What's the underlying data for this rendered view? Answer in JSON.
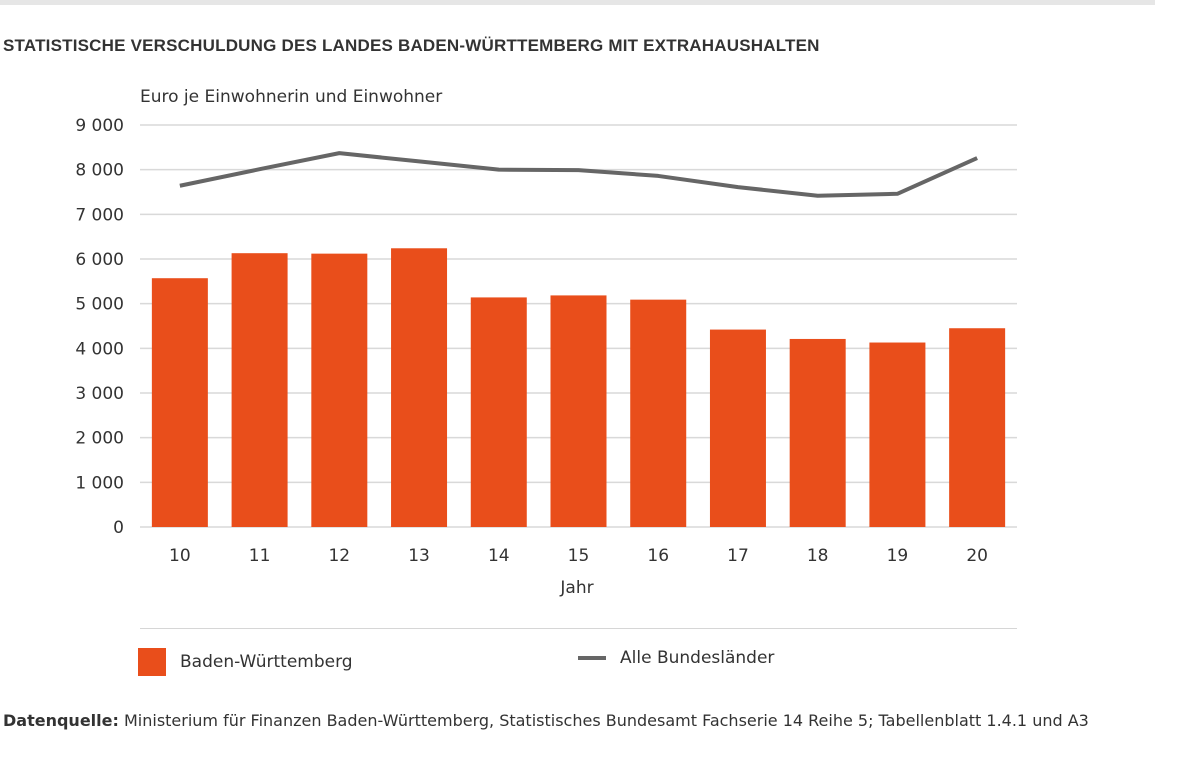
{
  "chart_data": {
    "type": "bar",
    "title": "STATISTISCHE VERSCHULDUNG DES LANDES BADEN-WÜRTTEMBERG MIT EXTRAHAUSHALTEN",
    "ylabel": "Euro je Einwohnerin und Einwohner",
    "xlabel": "Jahr",
    "categories": [
      "10",
      "11",
      "12",
      "13",
      "14",
      "15",
      "16",
      "17",
      "18",
      "19",
      "20"
    ],
    "ylim": [
      0,
      9000
    ],
    "yticks": [
      0,
      1000,
      2000,
      3000,
      4000,
      5000,
      6000,
      7000,
      8000,
      9000
    ],
    "ytick_labels": [
      "0",
      "1 000",
      "2 000",
      "3 000",
      "4 000",
      "5 000",
      "6 000",
      "7 000",
      "8 000",
      "9 000"
    ],
    "grid": true,
    "legend_position": "bottom",
    "series": [
      {
        "name": "Baden-Württemberg",
        "type": "bar",
        "color": "#e94e1b",
        "values": [
          5570,
          6130,
          6120,
          6240,
          5140,
          5185,
          5090,
          4420,
          4210,
          4130,
          4450
        ]
      },
      {
        "name": "Alle Bundesländer",
        "type": "line",
        "color": "#666666",
        "values": [
          7640,
          8010,
          8370,
          8185,
          8000,
          7990,
          7860,
          7610,
          7415,
          7460,
          8260
        ]
      }
    ]
  },
  "source": {
    "label": "Datenquelle:",
    "text": " Ministerium für Finanzen Baden-Württemberg, Statistisches Bundesamt Fachserie 14 Reihe 5; Tabellenblatt 1.4.1 und A3"
  }
}
